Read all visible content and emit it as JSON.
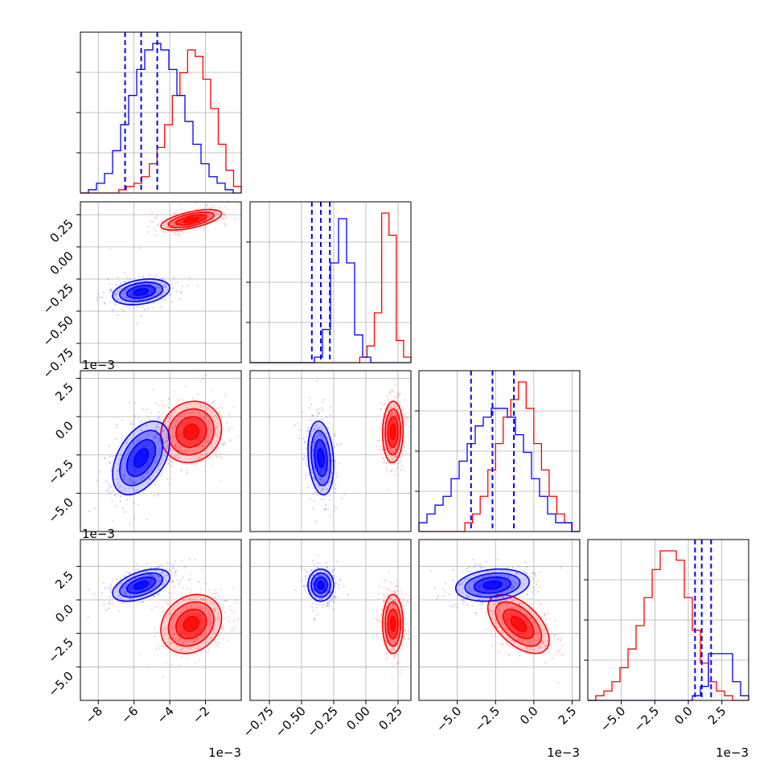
{
  "chart_data": {
    "type": "corner",
    "colors": {
      "red": "#ff0000",
      "blue": "#0000ff",
      "grid": "#b0b0b0"
    },
    "grid": true,
    "series": [
      {
        "color": "red",
        "means": [
          -0.0028,
          0.21,
          -0.001,
          -0.0018
        ],
        "sds": [
          0.00085,
          0.04,
          0.001,
          0.0011
        ],
        "corr": [
          [
            1,
            0.6,
            0.1,
            0.2
          ],
          [
            0.6,
            1,
            0.05,
            0.0
          ],
          [
            0.1,
            0.05,
            1,
            -0.55
          ],
          [
            0.2,
            0.0,
            -0.55,
            1
          ]
        ]
      },
      {
        "color": "blue",
        "means": [
          -0.0056,
          -0.35,
          -0.0027,
          0.0011
        ],
        "sds": [
          0.0008,
          0.05,
          0.0012,
          0.0006
        ],
        "corr": [
          [
            1,
            0.3,
            0.45,
            0.5
          ],
          [
            0.3,
            1,
            -0.2,
            0.0
          ],
          [
            0.45,
            -0.2,
            1,
            0.2
          ],
          [
            0.5,
            0.0,
            0.2,
            1
          ]
        ]
      }
    ],
    "hist_blue": [
      {
        "edges": [
          -9,
          0
        ],
        "counts": [
          0,
          1,
          3,
          6,
          13,
          21,
          30,
          38,
          44,
          46,
          44,
          38,
          30,
          22,
          15,
          9,
          5,
          3,
          1,
          0
        ],
        "quantiles": [
          -0.0065,
          -0.0056,
          -0.0047
        ]
      },
      {
        "edges": [
          -0.9,
          0.35
        ],
        "counts": [
          0,
          0,
          0,
          0,
          0,
          0,
          0,
          0,
          1,
          6,
          18,
          26,
          18,
          5,
          1,
          0,
          0,
          0,
          0,
          0
        ],
        "quantiles": [
          -0.42,
          -0.35,
          -0.28
        ]
      },
      {
        "edges": [
          -7.5,
          3
        ],
        "counts": [
          1,
          2,
          3,
          4,
          6,
          8,
          10,
          12,
          13,
          14,
          14,
          13,
          11,
          9,
          6,
          4,
          2,
          1,
          1,
          0
        ],
        "quantiles": [
          -0.0041,
          -0.0027,
          -0.0013
        ]
      },
      {
        "edges": [
          -7.5,
          4.5
        ],
        "counts": [
          0,
          0,
          0,
          0,
          0,
          0,
          0,
          0,
          0,
          0,
          0,
          0,
          0,
          1,
          3,
          10,
          10,
          10,
          4,
          1
        ],
        "quantiles": [
          0.0005,
          0.001,
          0.0017
        ]
      }
    ],
    "hist_red": [
      {
        "edges": [
          -9,
          0
        ],
        "counts": [
          0,
          0,
          0,
          0,
          0,
          1,
          2,
          3,
          5,
          9,
          14,
          21,
          30,
          37,
          44,
          42,
          35,
          26,
          15,
          7,
          2
        ]
      },
      {
        "edges": [
          -0.9,
          0.35
        ],
        "counts": [
          0,
          0,
          0,
          0,
          0,
          0,
          0,
          0,
          0,
          0,
          0,
          0,
          0,
          0,
          0,
          1,
          3,
          9,
          27,
          23,
          4,
          1
        ]
      },
      {
        "edges": [
          -7.5,
          3
        ],
        "counts": [
          0,
          0,
          0,
          0,
          0,
          0,
          1,
          2,
          4,
          7,
          10,
          13,
          15,
          17,
          14,
          10,
          7,
          4,
          2,
          1,
          0
        ]
      },
      {
        "edges": [
          -7.5,
          4.5
        ],
        "counts": [
          0,
          1,
          2,
          4,
          7,
          11,
          16,
          22,
          28,
          32,
          32,
          30,
          22,
          15,
          8,
          4,
          2,
          1,
          0,
          0
        ]
      }
    ],
    "ranges": [
      [
        -9,
        0
      ],
      [
        -0.9,
        0.35
      ],
      [
        -7.5,
        3
      ],
      [
        -7.5,
        4.5
      ]
    ],
    "ticks": [
      {
        "values": [
          -8,
          -6,
          -4,
          -2
        ],
        "labels": [
          "−8",
          "−6",
          "−4",
          "−2"
        ]
      },
      {
        "values": [
          -0.75,
          -0.5,
          -0.25,
          0,
          0.25
        ],
        "labels": [
          "−0.75",
          "−0.50",
          "−0.25",
          "0.00",
          "0.25"
        ]
      },
      {
        "values": [
          -5,
          -2.5,
          0,
          2.5
        ],
        "labels": [
          "−5.0",
          "−2.5",
          "0.0",
          "2.5"
        ]
      },
      {
        "values": [
          -5,
          -2.5,
          0,
          2.5
        ],
        "labels": [
          "−5.0",
          "−2.5",
          "0.0",
          "2.5"
        ]
      }
    ],
    "offset_text": "1e−3"
  }
}
